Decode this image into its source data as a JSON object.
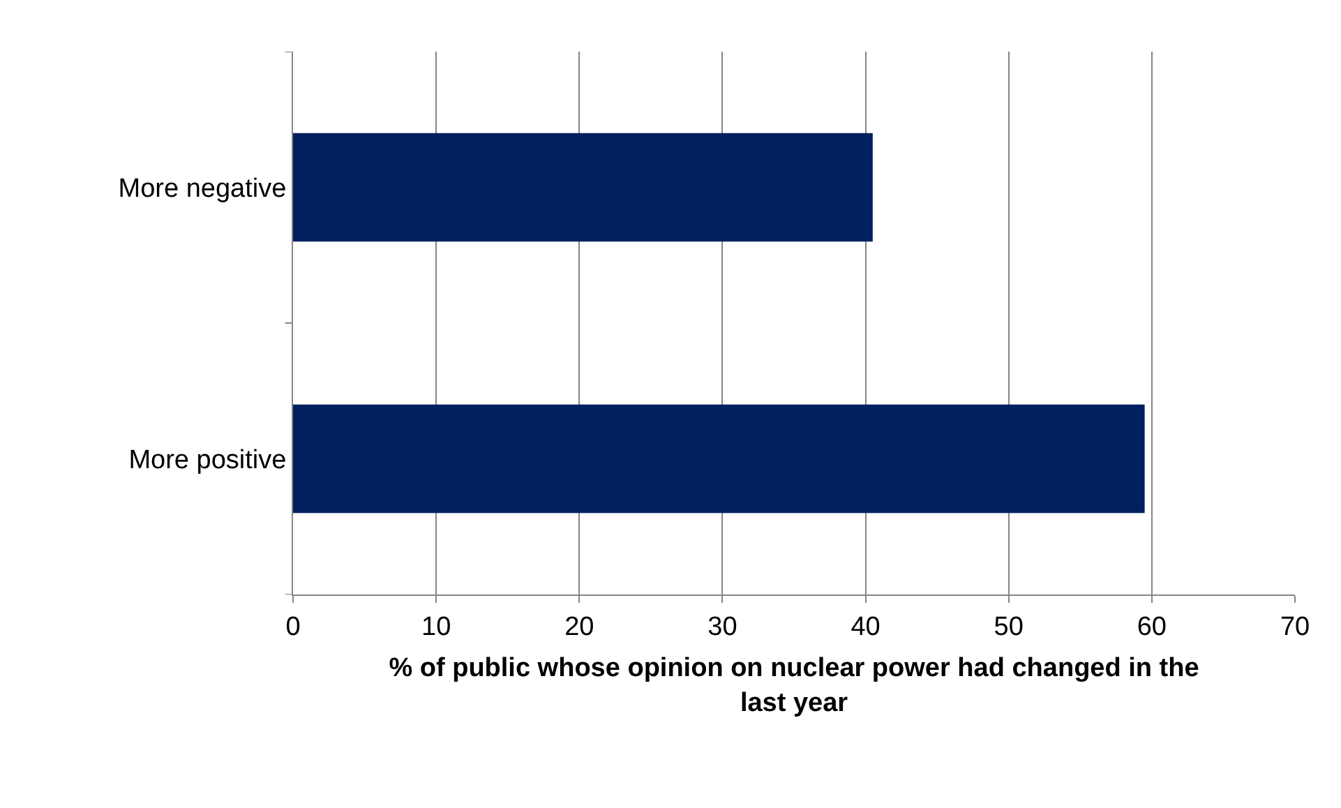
{
  "chart_data": {
    "type": "bar",
    "orientation": "horizontal",
    "xlabel": "% of public whose opinion on nuclear power had changed in the last year",
    "categories": [
      "More negative",
      "More positive"
    ],
    "values": [
      40.5,
      59.5
    ],
    "color": "#002060",
    "xlim": [
      0,
      70
    ],
    "xticks": [
      0,
      10,
      20,
      30,
      40,
      50,
      60,
      70
    ],
    "grid": "x",
    "legend": false
  }
}
